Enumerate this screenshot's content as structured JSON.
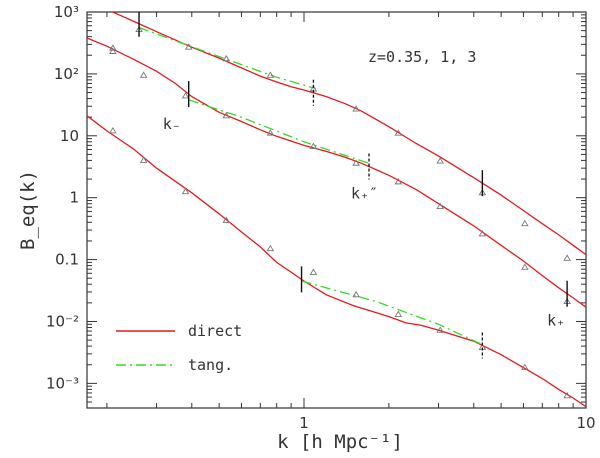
{
  "chart_data": {
    "type": "line",
    "x_scale": "log",
    "y_scale": "log",
    "xlim": [
      0.17,
      10
    ],
    "ylim": [
      0.0004,
      1000
    ],
    "xlabel": "k [h Mpc⁻¹]",
    "ylabel": "B_eq(k)",
    "x_ticks": [
      {
        "value": 1,
        "label": "1"
      },
      {
        "value": 10,
        "label": "10"
      }
    ],
    "y_ticks": [
      {
        "value": 1000,
        "label": "10³"
      },
      {
        "value": 100,
        "label": "10²"
      },
      {
        "value": 10,
        "label": "10"
      },
      {
        "value": 1,
        "label": "1"
      },
      {
        "value": 0.1,
        "label": "0.1"
      },
      {
        "value": 0.01,
        "label": "10⁻²"
      },
      {
        "value": 0.001,
        "label": "10⁻³"
      }
    ],
    "annotation": "z=0.35, 1, 3",
    "legend": {
      "placement": "bottom-left",
      "entries": [
        {
          "label": "direct",
          "style": "solid",
          "color": "#e41a1c"
        },
        {
          "label": "tang.",
          "style": "dash-dot",
          "color": "#33dd22"
        }
      ]
    },
    "series": [
      {
        "group": "z=0.35",
        "direct": [
          [
            0.17,
            1400
          ],
          [
            0.2,
            1100
          ],
          [
            0.25,
            700
          ],
          [
            0.3,
            480
          ],
          [
            0.4,
            270
          ],
          [
            0.5,
            180
          ],
          [
            0.6,
            125
          ],
          [
            0.7,
            92
          ],
          [
            0.8,
            74
          ],
          [
            0.9,
            62
          ],
          [
            1.0,
            55
          ],
          [
            1.2,
            43
          ],
          [
            1.4,
            33
          ],
          [
            1.6,
            25
          ],
          [
            2.0,
            14
          ],
          [
            2.5,
            7.5
          ],
          [
            3.0,
            4.7
          ],
          [
            4.0,
            2.1
          ],
          [
            5.0,
            1.1
          ],
          [
            6.0,
            0.62
          ],
          [
            7.0,
            0.38
          ],
          [
            8.0,
            0.25
          ],
          [
            9.0,
            0.17
          ],
          [
            10.0,
            0.12
          ]
        ],
        "tangent": [
          [
            0.26,
            560
          ],
          [
            0.5,
            190
          ],
          [
            0.8,
            88
          ],
          [
            1.1,
            58
          ]
        ],
        "points": [
          [
            0.21,
            260
          ],
          [
            0.26,
            520
          ],
          [
            0.39,
            270
          ],
          [
            0.53,
            175
          ],
          [
            0.76,
            95
          ],
          [
            1.08,
            57
          ],
          [
            1.53,
            27
          ],
          [
            2.16,
            11
          ],
          [
            3.04,
            3.9
          ],
          [
            4.29,
            1.2
          ],
          [
            6.07,
            0.38
          ],
          [
            8.57,
            0.105
          ]
        ],
        "k_minus": 0.26,
        "k_plus": 4.29,
        "k_plus2": 1.08
      },
      {
        "group": "z=1",
        "direct": [
          [
            0.17,
            380
          ],
          [
            0.2,
            280
          ],
          [
            0.25,
            170
          ],
          [
            0.3,
            110
          ],
          [
            0.35,
            70
          ],
          [
            0.4,
            43
          ],
          [
            0.5,
            24
          ],
          [
            0.6,
            17
          ],
          [
            0.7,
            12.5
          ],
          [
            0.8,
            9.8
          ],
          [
            1.0,
            7.0
          ],
          [
            1.2,
            5.6
          ],
          [
            1.4,
            4.5
          ],
          [
            1.6,
            3.6
          ],
          [
            2.0,
            2.3
          ],
          [
            2.5,
            1.35
          ],
          [
            3.0,
            0.8
          ],
          [
            4.0,
            0.35
          ],
          [
            5.0,
            0.17
          ],
          [
            6.0,
            0.095
          ],
          [
            7.0,
            0.055
          ],
          [
            8.0,
            0.035
          ],
          [
            9.0,
            0.024
          ],
          [
            10.0,
            0.017
          ]
        ],
        "tangent": [
          [
            0.39,
            38
          ],
          [
            0.6,
            20
          ],
          [
            1.0,
            8.0
          ],
          [
            1.7,
            3.6
          ]
        ],
        "points": [
          [
            0.21,
            230
          ],
          [
            0.27,
            95
          ],
          [
            0.38,
            44
          ],
          [
            0.53,
            21
          ],
          [
            0.76,
            11
          ],
          [
            1.08,
            6.7
          ],
          [
            1.53,
            3.6
          ],
          [
            2.16,
            1.8
          ],
          [
            3.04,
            0.72
          ],
          [
            4.29,
            0.26
          ],
          [
            6.07,
            0.075
          ],
          [
            8.57,
            0.021
          ]
        ],
        "k_minus": 0.39,
        "k_plus": 8.57,
        "k_plus2": 1.7
      },
      {
        "group": "z=3",
        "direct": [
          [
            0.17,
            21
          ],
          [
            0.2,
            12
          ],
          [
            0.25,
            6.0
          ],
          [
            0.3,
            3.0
          ],
          [
            0.4,
            1.2
          ],
          [
            0.5,
            0.55
          ],
          [
            0.6,
            0.28
          ],
          [
            0.7,
            0.16
          ],
          [
            0.8,
            0.09
          ],
          [
            1.0,
            0.045
          ],
          [
            1.2,
            0.027
          ],
          [
            1.5,
            0.018
          ],
          [
            2.0,
            0.012
          ],
          [
            2.3,
            0.0095
          ],
          [
            2.6,
            0.0087
          ],
          [
            3.0,
            0.0072
          ],
          [
            4.0,
            0.0048
          ],
          [
            5.0,
            0.0029
          ],
          [
            6.0,
            0.0018
          ],
          [
            7.0,
            0.0012
          ],
          [
            8.0,
            0.0008
          ],
          [
            9.0,
            0.00058
          ],
          [
            10.0,
            0.00042
          ]
        ],
        "tangent": [
          [
            0.98,
            0.045
          ],
          [
            1.8,
            0.021
          ],
          [
            3.0,
            0.009
          ],
          [
            4.3,
            0.0042
          ]
        ],
        "points": [
          [
            0.21,
            12
          ],
          [
            0.27,
            4.0
          ],
          [
            0.38,
            1.25
          ],
          [
            0.53,
            0.43
          ],
          [
            0.76,
            0.15
          ],
          [
            1.08,
            0.062
          ],
          [
            1.53,
            0.027
          ],
          [
            2.16,
            0.013
          ],
          [
            3.04,
            0.0072
          ],
          [
            4.29,
            0.0038
          ],
          [
            6.07,
            0.0018
          ],
          [
            8.57,
            0.00063
          ]
        ],
        "k_minus": 0.98,
        "k_plus2": 4.29
      }
    ],
    "labels": {
      "k_minus": "k₋",
      "k_plus": "k₊",
      "k_plus2": "k₊″"
    }
  }
}
